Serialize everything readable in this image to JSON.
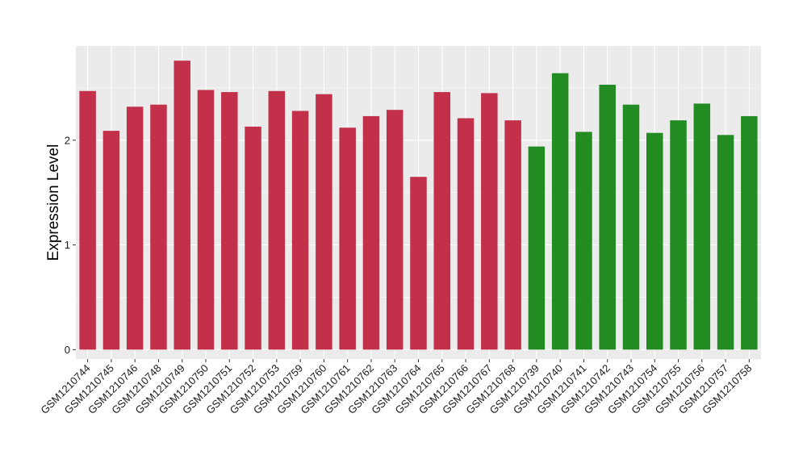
{
  "chart_data": {
    "type": "bar",
    "title": "",
    "xlabel": "",
    "ylabel": "Expression Level",
    "ylim": [
      -0.09,
      2.9
    ],
    "y_ticks": [
      0,
      1,
      2
    ],
    "y_tick_labels": [
      "0",
      "1",
      "2"
    ],
    "grid": true,
    "categories": [
      "GSM1210744",
      "GSM1210745",
      "GSM1210746",
      "GSM1210748",
      "GSM1210749",
      "GSM1210750",
      "GSM1210751",
      "GSM1210752",
      "GSM1210753",
      "GSM1210759",
      "GSM1210760",
      "GSM1210761",
      "GSM1210762",
      "GSM1210763",
      "GSM1210764",
      "GSM1210765",
      "GSM1210766",
      "GSM1210767",
      "GSM1210768",
      "GSM1210739",
      "GSM1210740",
      "GSM1210741",
      "GSM1210742",
      "GSM1210743",
      "GSM1210754",
      "GSM1210755",
      "GSM1210756",
      "GSM1210757",
      "GSM1210758"
    ],
    "values": [
      2.47,
      2.09,
      2.32,
      2.34,
      2.76,
      2.48,
      2.46,
      2.13,
      2.47,
      2.28,
      2.44,
      2.12,
      2.23,
      2.29,
      1.65,
      2.46,
      2.21,
      2.45,
      2.19,
      1.94,
      2.64,
      2.08,
      2.53,
      2.34,
      2.07,
      2.19,
      2.35,
      2.05,
      2.23
    ],
    "groups": [
      {
        "color": "#c3304a",
        "count": 19
      },
      {
        "color": "#228b22",
        "count": 10
      }
    ]
  }
}
